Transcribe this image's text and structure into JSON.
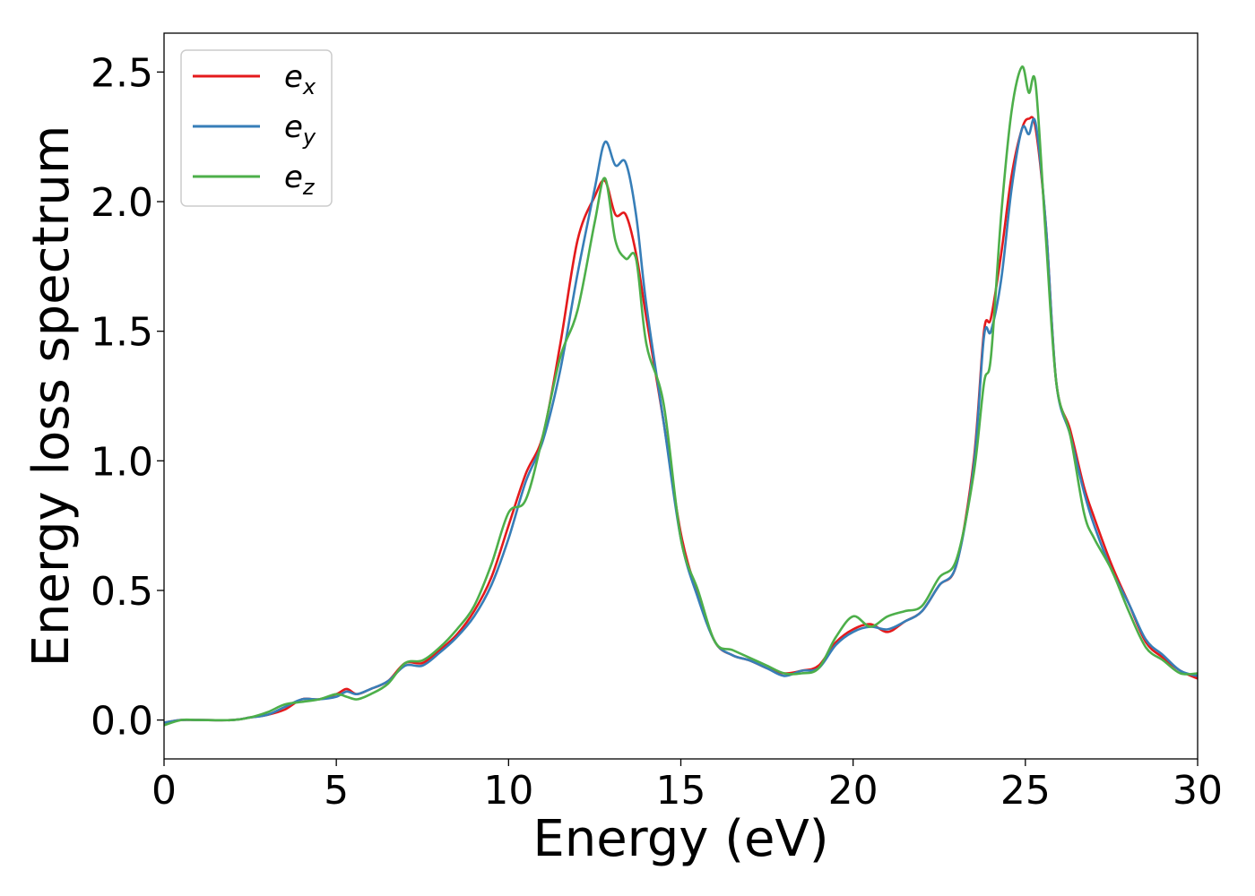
{
  "chart_data": {
    "type": "line",
    "title": "",
    "xlabel": "Energy (eV)",
    "ylabel": "Energy loss spectrum",
    "xlim": [
      0,
      30
    ],
    "ylim": [
      -0.15,
      2.65
    ],
    "xticks": [
      0,
      5,
      10,
      15,
      20,
      25,
      30
    ],
    "xtick_labels": [
      "0",
      "5",
      "10",
      "15",
      "20",
      "25",
      "30"
    ],
    "yticks": [
      0.0,
      0.5,
      1.0,
      1.5,
      2.0,
      2.5
    ],
    "ytick_labels": [
      "0.0",
      "0.5",
      "1.0",
      "1.5",
      "2.0",
      "2.5"
    ],
    "grid": false,
    "legend_position": "top-left",
    "series": [
      {
        "name": "ex",
        "name_base": "e",
        "name_sub": "x",
        "color": "#e41a1c",
        "x": [
          0,
          0.5,
          1,
          2,
          2.5,
          3,
          3.5,
          4,
          4.5,
          5,
          5.3,
          5.6,
          6,
          6.5,
          7,
          7.5,
          8,
          8.5,
          9,
          9.5,
          10,
          10.5,
          11,
          11.5,
          12,
          12.5,
          12.8,
          13.1,
          13.4,
          13.7,
          14,
          14.5,
          15,
          15.5,
          16,
          16.5,
          17,
          17.5,
          18,
          18.5,
          19,
          19.5,
          20,
          20.5,
          21,
          21.5,
          22,
          22.5,
          23,
          23.5,
          23.8,
          24,
          24.3,
          24.6,
          24.9,
          25.1,
          25.3,
          25.6,
          25.9,
          26.3,
          26.7,
          27,
          27.5,
          28,
          28.5,
          29,
          29.5,
          30
        ],
        "y": [
          -0.01,
          0,
          0,
          0,
          0.01,
          0.02,
          0.04,
          0.08,
          0.08,
          0.1,
          0.12,
          0.1,
          0.12,
          0.15,
          0.22,
          0.22,
          0.27,
          0.33,
          0.42,
          0.55,
          0.75,
          0.95,
          1.1,
          1.45,
          1.85,
          2.02,
          2.08,
          1.95,
          1.95,
          1.8,
          1.55,
          1.15,
          0.72,
          0.48,
          0.3,
          0.25,
          0.23,
          0.2,
          0.18,
          0.19,
          0.21,
          0.3,
          0.35,
          0.37,
          0.34,
          0.38,
          0.42,
          0.52,
          0.6,
          1.0,
          1.5,
          1.55,
          1.8,
          2.1,
          2.28,
          2.32,
          2.28,
          1.9,
          1.3,
          1.12,
          0.9,
          0.78,
          0.6,
          0.45,
          0.3,
          0.24,
          0.19,
          0.16
        ]
      },
      {
        "name": "ey",
        "name_base": "e",
        "name_sub": "y",
        "color": "#377eb8",
        "x": [
          0,
          0.5,
          1,
          2,
          2.5,
          3,
          3.5,
          4,
          4.5,
          5,
          5.3,
          5.6,
          6,
          6.5,
          7,
          7.5,
          8,
          8.5,
          9,
          9.5,
          10,
          10.5,
          11,
          11.5,
          12,
          12.5,
          12.8,
          13.1,
          13.4,
          13.7,
          14,
          14.5,
          15,
          15.5,
          16,
          16.5,
          17,
          17.5,
          18,
          18.5,
          19,
          19.5,
          20,
          20.5,
          21,
          21.5,
          22,
          22.5,
          23,
          23.5,
          23.8,
          24,
          24.3,
          24.6,
          24.9,
          25.1,
          25.3,
          25.6,
          25.9,
          26.3,
          26.7,
          27,
          27.5,
          28,
          28.5,
          29,
          29.5,
          30
        ],
        "y": [
          -0.01,
          0,
          0,
          0,
          0.01,
          0.02,
          0.05,
          0.08,
          0.08,
          0.09,
          0.11,
          0.1,
          0.12,
          0.15,
          0.21,
          0.21,
          0.26,
          0.32,
          0.4,
          0.52,
          0.7,
          0.92,
          1.08,
          1.35,
          1.72,
          2.05,
          2.23,
          2.14,
          2.15,
          1.95,
          1.6,
          1.15,
          0.7,
          0.47,
          0.3,
          0.25,
          0.23,
          0.2,
          0.17,
          0.19,
          0.2,
          0.29,
          0.34,
          0.36,
          0.35,
          0.38,
          0.42,
          0.52,
          0.6,
          0.98,
          1.48,
          1.5,
          1.7,
          2.05,
          2.28,
          2.26,
          2.3,
          1.9,
          1.3,
          1.1,
          0.88,
          0.75,
          0.58,
          0.45,
          0.31,
          0.25,
          0.19,
          0.17
        ]
      },
      {
        "name": "ez",
        "name_base": "e",
        "name_sub": "z",
        "color": "#4daf4a",
        "x": [
          0,
          0.5,
          1,
          2,
          2.5,
          3,
          3.5,
          4,
          4.5,
          5,
          5.3,
          5.6,
          6,
          6.5,
          7,
          7.5,
          8,
          8.5,
          9,
          9.5,
          10,
          10.5,
          11,
          11.5,
          12,
          12.5,
          12.8,
          13.1,
          13.4,
          13.7,
          14,
          14.5,
          15,
          15.5,
          16,
          16.5,
          17,
          17.5,
          18,
          18.5,
          19,
          19.5,
          20,
          20.5,
          21,
          21.5,
          22,
          22.5,
          23,
          23.5,
          23.8,
          24,
          24.3,
          24.6,
          24.9,
          25.1,
          25.3,
          25.6,
          25.9,
          26.3,
          26.7,
          27,
          27.5,
          28,
          28.5,
          29,
          29.5,
          30
        ],
        "y": [
          -0.02,
          0,
          0,
          0,
          0.01,
          0.03,
          0.06,
          0.07,
          0.08,
          0.1,
          0.09,
          0.08,
          0.1,
          0.14,
          0.22,
          0.23,
          0.28,
          0.35,
          0.44,
          0.6,
          0.8,
          0.85,
          1.1,
          1.4,
          1.58,
          1.92,
          2.09,
          1.85,
          1.78,
          1.78,
          1.45,
          1.22,
          0.7,
          0.5,
          0.3,
          0.27,
          0.24,
          0.21,
          0.18,
          0.18,
          0.2,
          0.32,
          0.4,
          0.36,
          0.4,
          0.42,
          0.44,
          0.55,
          0.62,
          0.95,
          1.3,
          1.4,
          1.95,
          2.35,
          2.52,
          2.42,
          2.45,
          1.85,
          1.3,
          1.1,
          0.8,
          0.7,
          0.58,
          0.42,
          0.28,
          0.23,
          0.18,
          0.18
        ]
      }
    ]
  }
}
